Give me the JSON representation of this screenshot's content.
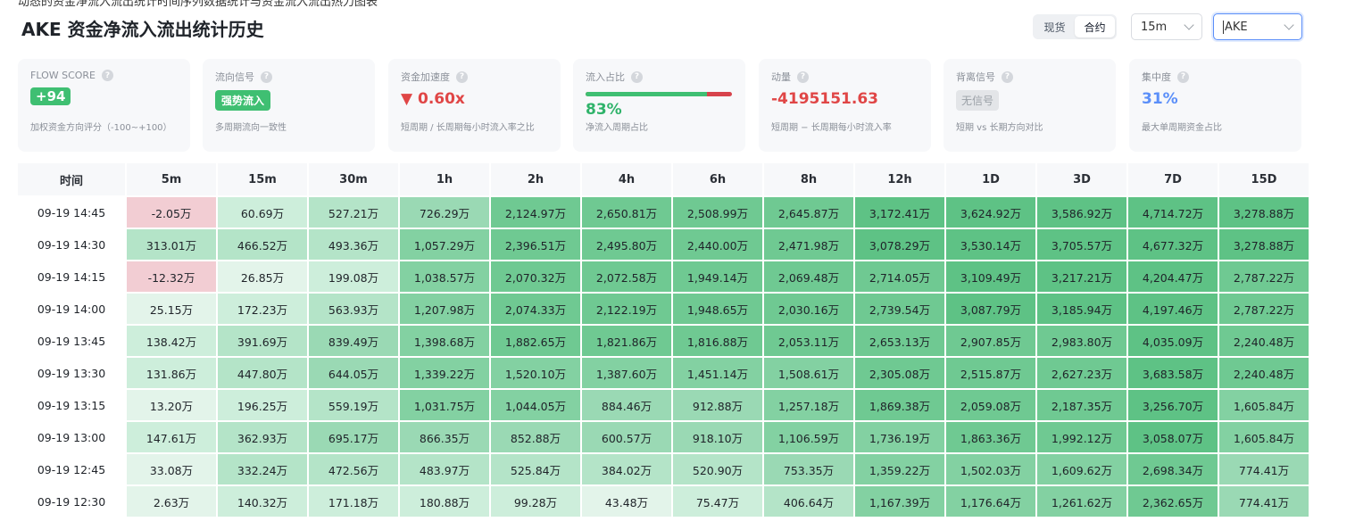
{
  "top_cut_text": "动态的资金净流入流出统计时间序列数据统计与资金流入流出热力图表",
  "title": "AKE 资金净流入流出统计历史",
  "market_toggle": {
    "options": [
      "现货",
      "合约"
    ],
    "active_index": 1
  },
  "timeframe_select": {
    "value": "15m"
  },
  "symbol_select": {
    "value": "AKE"
  },
  "cards": {
    "flow_score": {
      "title": "FLOW SCORE",
      "value": "+94",
      "sub": "加权资金方向评分（-100~+100）"
    },
    "flow_signal": {
      "title": "流向信号",
      "value": "强势流入",
      "sub": "多周期流向一致性"
    },
    "acceleration": {
      "title": "资金加速度",
      "value": "▼ 0.60x",
      "sub": "短周期 / 长周期每小时流入率之比"
    },
    "inflow_ratio": {
      "title": "流入占比",
      "value": "83%",
      "progress": 0.83,
      "sub": "净流入周期占比"
    },
    "momentum": {
      "title": "动量",
      "value": "-4195151.63",
      "sub": "短周期 − 长周期每小时流入率"
    },
    "divergence": {
      "title": "背离信号",
      "value": "无信号",
      "sub": "短期 vs 长期方向对比"
    },
    "concentration": {
      "title": "集中度",
      "value": "31%",
      "sub": "最大单周期资金占比"
    }
  },
  "colors": {
    "positive": "#3fbf72",
    "negative": "#e04646",
    "accent": "#5b8ff9"
  },
  "table": {
    "headers": [
      "时间",
      "5m",
      "15m",
      "30m",
      "1h",
      "2h",
      "4h",
      "6h",
      "8h",
      "12h",
      "1D",
      "3D",
      "7D",
      "15D"
    ],
    "rows": [
      [
        "09-19 14:45",
        "-2.05万",
        "60.69万",
        "527.21万",
        "726.29万",
        "2,124.97万",
        "2,650.81万",
        "2,508.99万",
        "2,645.87万",
        "3,172.41万",
        "3,624.92万",
        "3,586.92万",
        "4,714.72万",
        "3,278.88万"
      ],
      [
        "09-19 14:30",
        "313.01万",
        "466.52万",
        "493.36万",
        "1,057.29万",
        "2,396.51万",
        "2,495.80万",
        "2,440.00万",
        "2,471.98万",
        "3,078.29万",
        "3,530.14万",
        "3,705.57万",
        "4,677.32万",
        "3,278.88万"
      ],
      [
        "09-19 14:15",
        "-12.32万",
        "26.85万",
        "199.08万",
        "1,038.57万",
        "2,070.32万",
        "2,072.58万",
        "1,949.14万",
        "2,069.48万",
        "2,714.05万",
        "3,109.49万",
        "3,217.21万",
        "4,204.47万",
        "2,787.22万"
      ],
      [
        "09-19 14:00",
        "25.15万",
        "172.23万",
        "563.93万",
        "1,207.98万",
        "2,074.33万",
        "2,122.19万",
        "1,948.65万",
        "2,030.16万",
        "2,739.54万",
        "3,087.79万",
        "3,185.94万",
        "4,197.46万",
        "2,787.22万"
      ],
      [
        "09-19 13:45",
        "138.42万",
        "391.69万",
        "839.49万",
        "1,398.68万",
        "1,882.65万",
        "1,821.86万",
        "1,816.88万",
        "2,053.11万",
        "2,653.13万",
        "2,907.85万",
        "2,983.80万",
        "4,035.09万",
        "2,240.48万"
      ],
      [
        "09-19 13:30",
        "131.86万",
        "447.80万",
        "644.05万",
        "1,339.22万",
        "1,520.10万",
        "1,387.60万",
        "1,451.14万",
        "1,508.61万",
        "2,305.08万",
        "2,515.87万",
        "2,627.23万",
        "3,683.58万",
        "2,240.48万"
      ],
      [
        "09-19 13:15",
        "13.20万",
        "196.25万",
        "559.19万",
        "1,031.75万",
        "1,044.05万",
        "884.46万",
        "912.88万",
        "1,257.18万",
        "1,869.38万",
        "2,059.08万",
        "2,187.35万",
        "3,256.70万",
        "1,605.84万"
      ],
      [
        "09-19 13:00",
        "147.61万",
        "362.93万",
        "695.17万",
        "866.35万",
        "852.88万",
        "600.57万",
        "918.10万",
        "1,106.59万",
        "1,736.19万",
        "1,863.36万",
        "1,992.12万",
        "3,058.07万",
        "1,605.84万"
      ],
      [
        "09-19 12:45",
        "33.08万",
        "332.24万",
        "472.56万",
        "483.97万",
        "525.84万",
        "384.02万",
        "520.90万",
        "753.35万",
        "1,359.22万",
        "1,502.03万",
        "1,609.62万",
        "2,698.34万",
        "774.41万"
      ],
      [
        "09-19 12:30",
        "2.63万",
        "140.32万",
        "171.18万",
        "180.88万",
        "99.28万",
        "43.48万",
        "75.47万",
        "406.64万",
        "1,167.39万",
        "1,176.64万",
        "1,261.62万",
        "2,362.65万",
        "774.41万"
      ]
    ]
  }
}
